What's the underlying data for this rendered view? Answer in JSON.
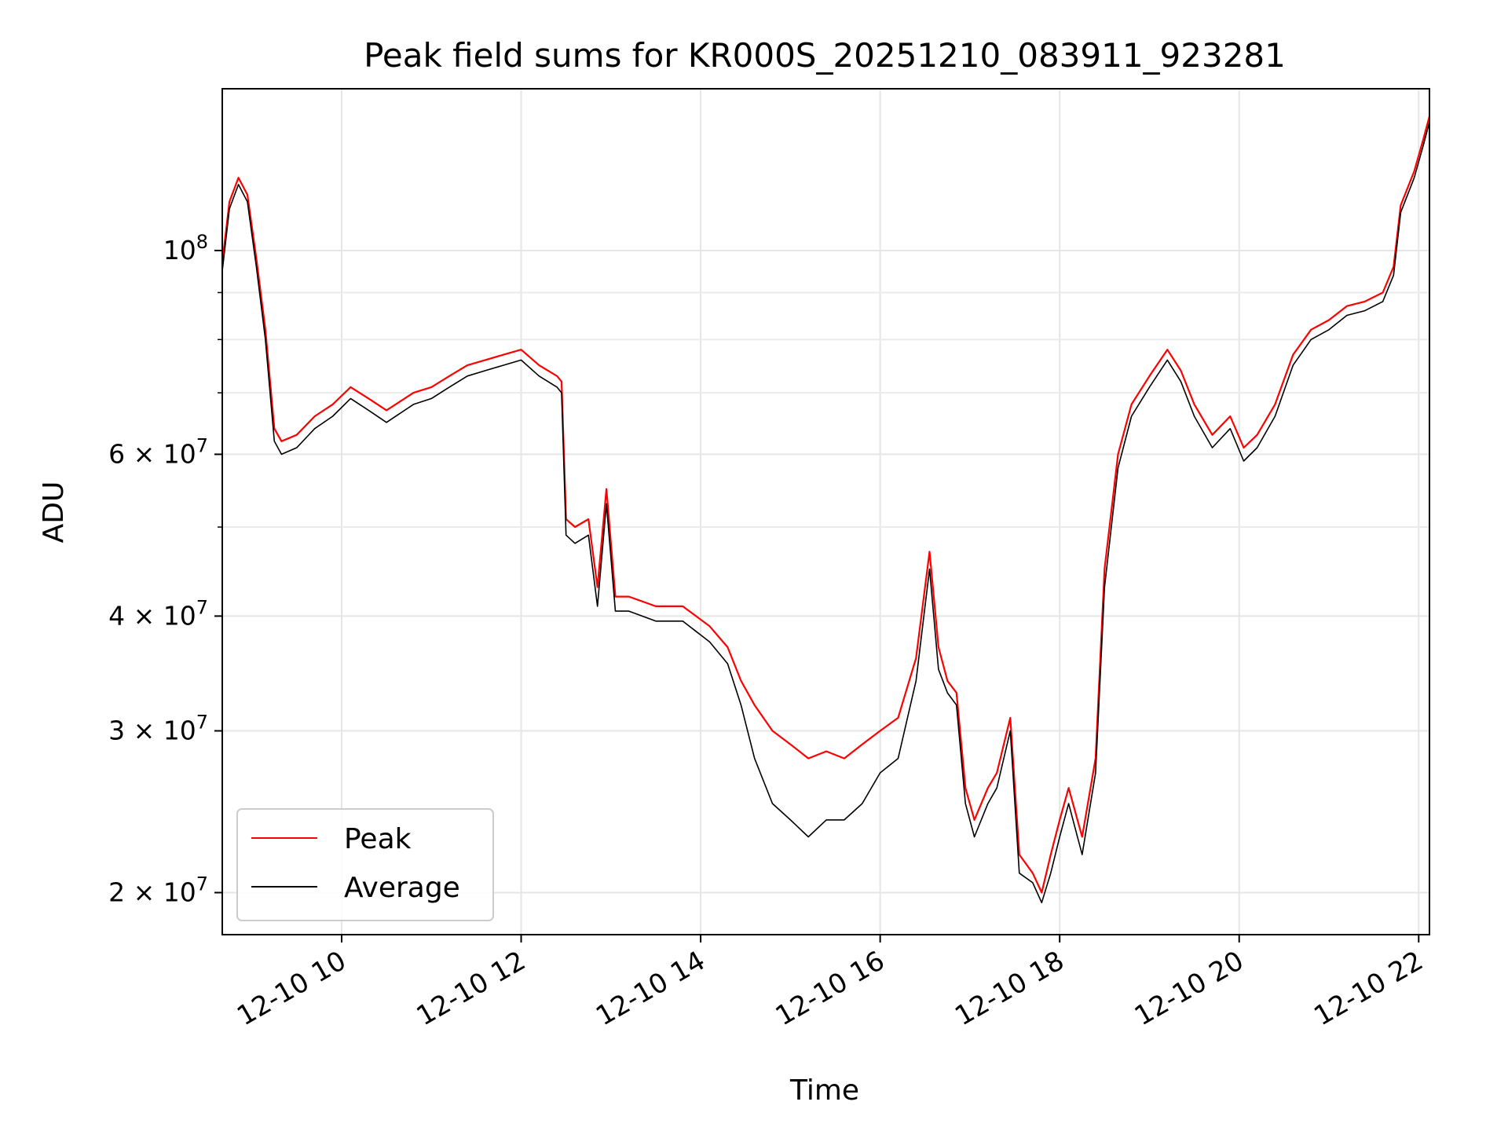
{
  "chart_data": {
    "type": "line",
    "title": "Peak field sums for KR000S_20251210_083911_923281",
    "xlabel": "Time",
    "ylabel": "ADU",
    "yscale": "log",
    "ylim": [
      18000000,
      150000000
    ],
    "xlim_hours": [
      8.67,
      22.12
    ],
    "grid": true,
    "legend_location": "lower-left",
    "x_ticks": [
      {
        "hour": 10,
        "label": "12-10 10"
      },
      {
        "hour": 12,
        "label": "12-10 12"
      },
      {
        "hour": 14,
        "label": "12-10 14"
      },
      {
        "hour": 16,
        "label": "12-10 16"
      },
      {
        "hour": 18,
        "label": "12-10 18"
      },
      {
        "hour": 20,
        "label": "12-10 20"
      },
      {
        "hour": 22,
        "label": "12-10 22"
      }
    ],
    "y_ticks": [
      {
        "value": 20000000,
        "mantissa": "2",
        "exp": "7"
      },
      {
        "value": 30000000,
        "mantissa": "3",
        "exp": "7"
      },
      {
        "value": 40000000,
        "mantissa": "4",
        "exp": "7"
      },
      {
        "value": 60000000,
        "mantissa": "6",
        "exp": "7"
      },
      {
        "value": 100000000,
        "mantissa": "",
        "exp": "8"
      }
    ],
    "y_minor_ticks": [
      50000000,
      70000000,
      80000000,
      90000000
    ],
    "series": [
      {
        "name": "Peak",
        "color": "#ff0000",
        "x_hours": [
          8.67,
          8.75,
          8.85,
          8.95,
          9.05,
          9.15,
          9.25,
          9.33,
          9.5,
          9.7,
          9.9,
          10.1,
          10.3,
          10.5,
          10.8,
          11.0,
          11.2,
          11.4,
          11.6,
          11.8,
          12.0,
          12.2,
          12.4,
          12.45,
          12.5,
          12.6,
          12.75,
          12.85,
          12.95,
          13.05,
          13.2,
          13.5,
          13.8,
          14.1,
          14.3,
          14.45,
          14.6,
          14.8,
          15.0,
          15.2,
          15.4,
          15.6,
          15.8,
          16.0,
          16.2,
          16.4,
          16.55,
          16.65,
          16.75,
          16.85,
          16.95,
          17.05,
          17.2,
          17.3,
          17.45,
          17.55,
          17.7,
          17.8,
          17.9,
          18.0,
          18.1,
          18.25,
          18.4,
          18.5,
          18.65,
          18.8,
          19.0,
          19.2,
          19.35,
          19.5,
          19.7,
          19.9,
          20.05,
          20.2,
          20.4,
          20.6,
          20.8,
          21.0,
          21.2,
          21.4,
          21.6,
          21.72,
          21.8,
          21.95,
          22.05,
          22.12
        ],
        "values": [
          97000000,
          113000000,
          120000000,
          115000000,
          98000000,
          82000000,
          64000000,
          62000000,
          63000000,
          66000000,
          68000000,
          71000000,
          69000000,
          67000000,
          70000000,
          71000000,
          73000000,
          75000000,
          76000000,
          77000000,
          78000000,
          75000000,
          73000000,
          72000000,
          51000000,
          50000000,
          51000000,
          43000000,
          55000000,
          42000000,
          42000000,
          41000000,
          41000000,
          39000000,
          37000000,
          34000000,
          32000000,
          30000000,
          29000000,
          28000000,
          28500000,
          28000000,
          29000000,
          30000000,
          31000000,
          36000000,
          47000000,
          37000000,
          34000000,
          33000000,
          26000000,
          24000000,
          26000000,
          27000000,
          31000000,
          22000000,
          21000000,
          20000000,
          22000000,
          24000000,
          26000000,
          23000000,
          28000000,
          45000000,
          60000000,
          68000000,
          73000000,
          78000000,
          74000000,
          68000000,
          63000000,
          66000000,
          61000000,
          63000000,
          68000000,
          77000000,
          82000000,
          84000000,
          87000000,
          88000000,
          90000000,
          96000000,
          112000000,
          122000000,
          132000000,
          140000000
        ]
      },
      {
        "name": "Average",
        "color": "#000000",
        "x_hours": [
          8.67,
          8.75,
          8.85,
          8.95,
          9.05,
          9.15,
          9.25,
          9.33,
          9.5,
          9.7,
          9.9,
          10.1,
          10.3,
          10.5,
          10.8,
          11.0,
          11.2,
          11.4,
          11.6,
          11.8,
          12.0,
          12.2,
          12.4,
          12.45,
          12.5,
          12.6,
          12.75,
          12.85,
          12.95,
          13.05,
          13.2,
          13.5,
          13.8,
          14.1,
          14.3,
          14.45,
          14.6,
          14.8,
          15.0,
          15.2,
          15.4,
          15.6,
          15.8,
          16.0,
          16.2,
          16.4,
          16.55,
          16.65,
          16.75,
          16.85,
          16.95,
          17.05,
          17.2,
          17.3,
          17.45,
          17.55,
          17.7,
          17.8,
          17.9,
          18.0,
          18.1,
          18.25,
          18.4,
          18.5,
          18.65,
          18.8,
          19.0,
          19.2,
          19.35,
          19.5,
          19.7,
          19.9,
          20.05,
          20.2,
          20.4,
          20.6,
          20.8,
          21.0,
          21.2,
          21.4,
          21.6,
          21.72,
          21.8,
          21.95,
          22.05,
          22.12
        ],
        "values": [
          95000000,
          111000000,
          118000000,
          113000000,
          96000000,
          80000000,
          62000000,
          60000000,
          61000000,
          64000000,
          66000000,
          69000000,
          67000000,
          65000000,
          68000000,
          69000000,
          71000000,
          73000000,
          74000000,
          75000000,
          76000000,
          73000000,
          71000000,
          70000000,
          49000000,
          48000000,
          49000000,
          41000000,
          53000000,
          40500000,
          40500000,
          39500000,
          39500000,
          37500000,
          35500000,
          32000000,
          28000000,
          25000000,
          24000000,
          23000000,
          24000000,
          24000000,
          25000000,
          27000000,
          28000000,
          34000000,
          45000000,
          35000000,
          33000000,
          32000000,
          25000000,
          23000000,
          25000000,
          26000000,
          30000000,
          21000000,
          20500000,
          19500000,
          21000000,
          23000000,
          25000000,
          22000000,
          27000000,
          43000000,
          58000000,
          66000000,
          71000000,
          76000000,
          72000000,
          66000000,
          61000000,
          64000000,
          59000000,
          61000000,
          66000000,
          75000000,
          80000000,
          82000000,
          85000000,
          86000000,
          88000000,
          94000000,
          110000000,
          120000000,
          130000000,
          138000000
        ]
      }
    ]
  }
}
